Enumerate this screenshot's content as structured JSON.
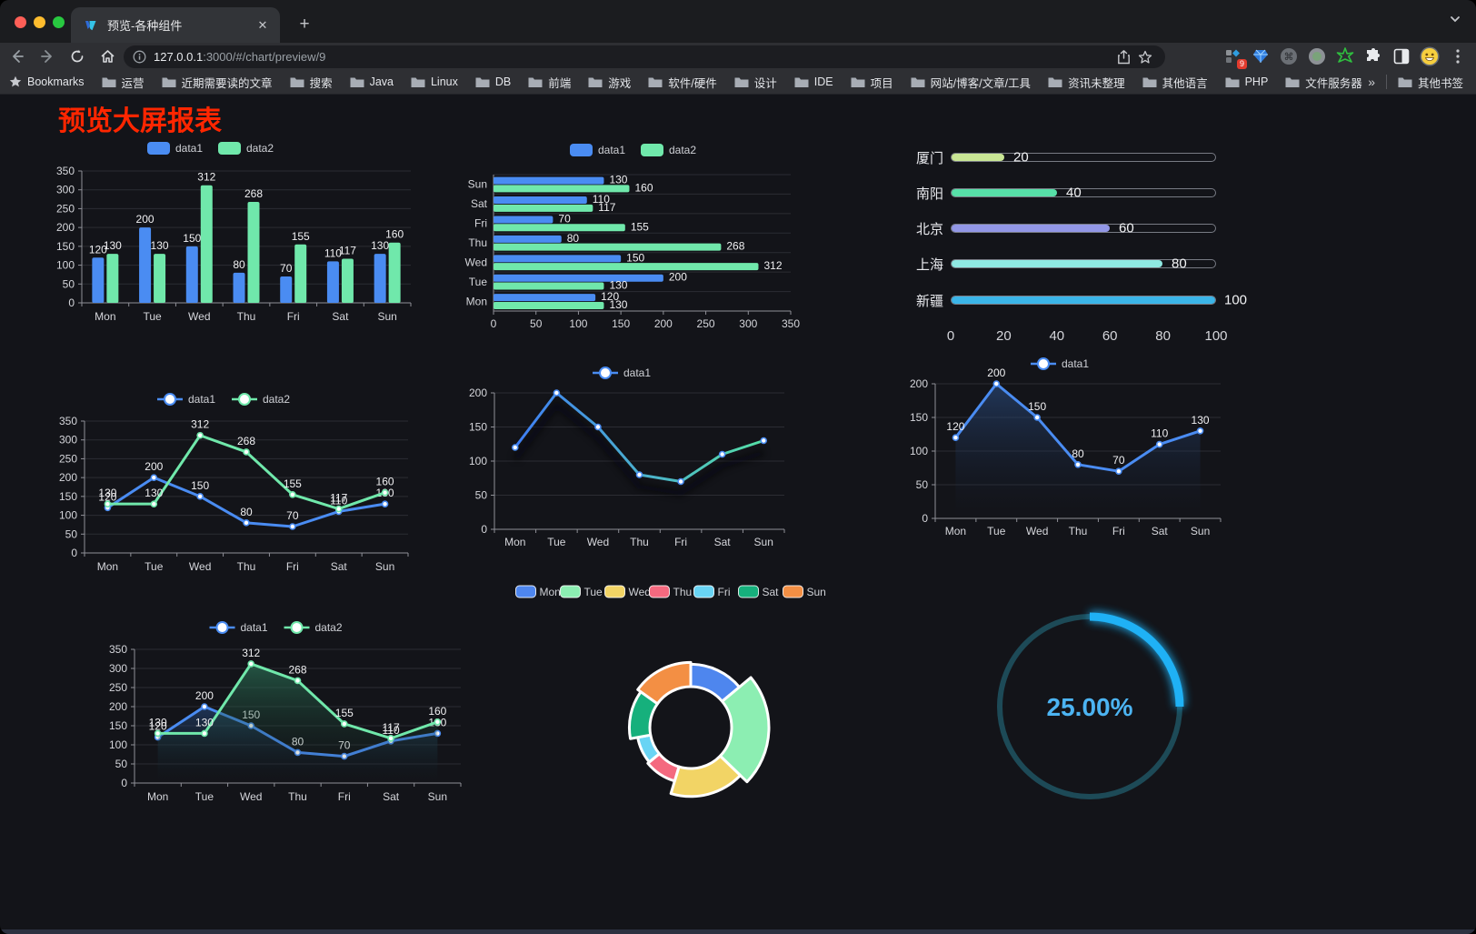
{
  "browser": {
    "tab": {
      "title": "预览-各种组件"
    },
    "new_tab": "+",
    "url_host": "127.0.0.1",
    "url_rest": ":3000/#/chart/preview/9",
    "extension_badge": "9",
    "bookmarks_label": "Bookmarks",
    "bookmarks": [
      "运营",
      "近期需要读的文章",
      "搜索",
      "Java",
      "Linux",
      "DB",
      "前端",
      "游戏",
      "软件/硬件",
      "设计",
      "IDE",
      "项目",
      "网站/博客/文章/工具",
      "资讯未整理",
      "其他语言",
      "PHP",
      "文件服务器"
    ],
    "bookmarks_overflow": "»",
    "other_bookmarks": "其他书签"
  },
  "page": {
    "title": "预览大屏报表",
    "title_color": "#ff2600"
  },
  "chart_data": [
    {
      "name": "grouped-bar",
      "type": "bar",
      "categories": [
        "Mon",
        "Tue",
        "Wed",
        "Thu",
        "Fri",
        "Sat",
        "Sun"
      ],
      "series": [
        {
          "name": "data1",
          "color": "#4a8cf2",
          "values": [
            120,
            200,
            150,
            80,
            70,
            110,
            130
          ]
        },
        {
          "name": "data2",
          "color": "#70e8ab",
          "values": [
            130,
            130,
            312,
            268,
            155,
            117,
            160
          ]
        }
      ],
      "ylim": [
        0,
        350
      ],
      "yticks": [
        0,
        50,
        100,
        150,
        200,
        250,
        300,
        350
      ],
      "grid": true,
      "legend_position": "top"
    },
    {
      "name": "horizontal-bar",
      "type": "hbar",
      "categories": [
        "Mon",
        "Tue",
        "Wed",
        "Thu",
        "Fri",
        "Sat",
        "Sun"
      ],
      "series": [
        {
          "name": "data1",
          "color": "#4a8cf2",
          "values": [
            120,
            200,
            150,
            80,
            70,
            110,
            130
          ]
        },
        {
          "name": "data2",
          "color": "#70e8ab",
          "values": [
            130,
            130,
            312,
            268,
            155,
            117,
            160
          ]
        }
      ],
      "xlim": [
        0,
        350
      ],
      "xticks": [
        0,
        50,
        100,
        150,
        200,
        250,
        300,
        350
      ],
      "grid": true,
      "legend_position": "top"
    },
    {
      "name": "progress-list",
      "type": "progress",
      "max": 100,
      "xticks": [
        0,
        20,
        40,
        60,
        80,
        100
      ],
      "items": [
        {
          "label": "厦门",
          "value": 20,
          "color": "#c9e695"
        },
        {
          "label": "南阳",
          "value": 40,
          "color": "#57e0a8"
        },
        {
          "label": "北京",
          "value": 60,
          "color": "#9297e6"
        },
        {
          "label": "上海",
          "value": 80,
          "color": "#8fe9e2"
        },
        {
          "label": "新疆",
          "value": 100,
          "color": "#3bb5e8"
        }
      ]
    },
    {
      "name": "line-two-series",
      "type": "line",
      "categories": [
        "Mon",
        "Tue",
        "Wed",
        "Thu",
        "Fri",
        "Sat",
        "Sun"
      ],
      "series": [
        {
          "name": "data1",
          "color": "#4a8cf2",
          "values": [
            120,
            200,
            150,
            80,
            70,
            110,
            130
          ]
        },
        {
          "name": "data2",
          "color": "#70e8ab",
          "values": [
            130,
            130,
            312,
            268,
            155,
            117,
            160
          ]
        }
      ],
      "ylim": [
        0,
        350
      ],
      "yticks": [
        0,
        50,
        100,
        150,
        200,
        250,
        300,
        350
      ],
      "show_labels": true,
      "legend_position": "top"
    },
    {
      "name": "gradient-line",
      "type": "line",
      "categories": [
        "Mon",
        "Tue",
        "Wed",
        "Thu",
        "Fri",
        "Sat",
        "Sun"
      ],
      "series": [
        {
          "name": "data1",
          "color": "#4a8cf2",
          "gradient": [
            "#3f7ef5",
            "#55e0a6"
          ],
          "values": [
            120,
            200,
            150,
            80,
            70,
            110,
            130
          ]
        }
      ],
      "ylim": [
        0,
        200
      ],
      "yticks": [
        0,
        50,
        100,
        150,
        200
      ],
      "show_labels": false,
      "shadow": true,
      "legend_position": "top"
    },
    {
      "name": "area-line",
      "type": "line",
      "categories": [
        "Mon",
        "Tue",
        "Wed",
        "Thu",
        "Fri",
        "Sat",
        "Sun"
      ],
      "series": [
        {
          "name": "data1",
          "color": "#4a8cf2",
          "values": [
            120,
            200,
            150,
            80,
            70,
            110,
            130
          ],
          "area": [
            "rgba(44,79,134,0.60)",
            "rgba(20,30,50,0)"
          ]
        }
      ],
      "ylim": [
        0,
        200
      ],
      "yticks": [
        0,
        50,
        100,
        150,
        200
      ],
      "show_labels": true,
      "legend_position": "top"
    },
    {
      "name": "line-area-two-series",
      "type": "line",
      "categories": [
        "Mon",
        "Tue",
        "Wed",
        "Thu",
        "Fri",
        "Sat",
        "Sun"
      ],
      "series": [
        {
          "name": "data1",
          "color": "#4a8cf2",
          "values": [
            120,
            200,
            150,
            80,
            70,
            110,
            130
          ],
          "area": [
            "rgba(43,86,148,0.50)",
            "rgba(15,25,40,0)"
          ]
        },
        {
          "name": "data2",
          "color": "#70e8ab",
          "values": [
            130,
            130,
            312,
            268,
            155,
            117,
            160
          ],
          "area": [
            "rgba(47,128,96,0.60)",
            "rgba(15,30,25,0)"
          ]
        }
      ],
      "ylim": [
        0,
        350
      ],
      "yticks": [
        0,
        50,
        100,
        150,
        200,
        250,
        300,
        350
      ],
      "show_labels": true,
      "legend_position": "top"
    },
    {
      "name": "rose-pie",
      "type": "pie",
      "categories": [
        "Mon",
        "Tue",
        "Wed",
        "Thu",
        "Fri",
        "Sat",
        "Sun"
      ],
      "values": [
        120,
        200,
        150,
        80,
        70,
        110,
        130
      ],
      "colors": [
        "#4e86ee",
        "#8ceeb2",
        "#f2d465",
        "#f4697f",
        "#69d4f4",
        "#16b07c",
        "#f38f44"
      ],
      "border_color": "#ffffff",
      "legend_position": "top"
    },
    {
      "name": "gauge",
      "type": "gauge",
      "value": 25,
      "label": "25.00%",
      "color": "#1fb1f5",
      "track_color": "#1d4a57",
      "text_color": "#4cb4f2"
    }
  ]
}
